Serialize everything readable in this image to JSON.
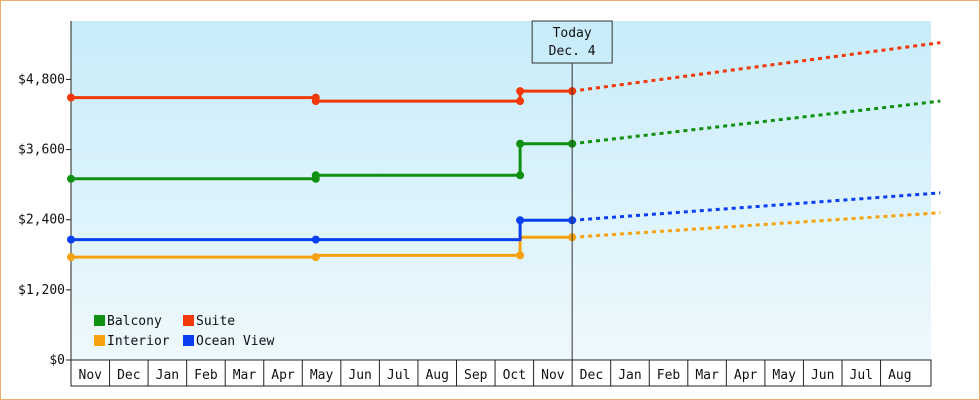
{
  "chart_data": {
    "type": "line",
    "title": "",
    "xlabel": "",
    "ylabel": "",
    "ylim": [
      0,
      5800
    ],
    "y_ticks": [
      {
        "value": 0,
        "label": "$0"
      },
      {
        "value": 1200,
        "label": "$1,200"
      },
      {
        "value": 2400,
        "label": "$2,400"
      },
      {
        "value": 3600,
        "label": "$3,600"
      },
      {
        "value": 4800,
        "label": "$4,800"
      }
    ],
    "x_categories": [
      "Nov",
      "Dec",
      "Jan",
      "Feb",
      "Mar",
      "Apr",
      "May",
      "Jun",
      "Jul",
      "Aug",
      "Sep",
      "Oct",
      "Nov",
      "Dec",
      "Jan",
      "Feb",
      "Mar",
      "Apr",
      "May",
      "Jun",
      "Jul",
      "Aug"
    ],
    "today_marker": {
      "line1": "Today",
      "line2": "Dec. 4",
      "x": 13.0
    },
    "grid": false,
    "background": {
      "top": "#c8ecfa",
      "bottom": "#eef9fd"
    },
    "legend_placement": "bottom-left",
    "series": [
      {
        "name": "Balcony",
        "color": "#109010",
        "points": [
          [
            0.0,
            3100
          ],
          [
            6.35,
            3100
          ],
          [
            6.35,
            3160
          ],
          [
            11.65,
            3160
          ],
          [
            11.65,
            3700
          ],
          [
            13.0,
            3700
          ]
        ],
        "markers": [
          [
            0.0,
            3100
          ],
          [
            6.35,
            3100
          ],
          [
            6.35,
            3160
          ],
          [
            11.65,
            3160
          ],
          [
            11.65,
            3700
          ],
          [
            13.0,
            3700
          ]
        ],
        "forecast": [
          [
            13.0,
            3700
          ],
          [
            22.55,
            4430
          ]
        ]
      },
      {
        "name": "Suite",
        "color": "#f03808",
        "points": [
          [
            0.0,
            4490
          ],
          [
            6.35,
            4490
          ],
          [
            6.35,
            4430
          ],
          [
            11.65,
            4430
          ],
          [
            11.65,
            4600
          ],
          [
            13.0,
            4600
          ]
        ],
        "markers": [
          [
            0.0,
            4490
          ],
          [
            6.35,
            4490
          ],
          [
            6.35,
            4430
          ],
          [
            11.65,
            4430
          ],
          [
            11.65,
            4600
          ],
          [
            13.0,
            4600
          ]
        ],
        "forecast": [
          [
            13.0,
            4600
          ],
          [
            22.55,
            5430
          ]
        ]
      },
      {
        "name": "Interior",
        "color": "#f6a10d",
        "points": [
          [
            0.0,
            1760
          ],
          [
            6.35,
            1760
          ],
          [
            6.35,
            1790
          ],
          [
            11.65,
            1790
          ],
          [
            11.65,
            2100
          ],
          [
            13.0,
            2100
          ]
        ],
        "markers": [
          [
            0.0,
            1760
          ],
          [
            6.35,
            1760
          ],
          [
            11.65,
            1790
          ],
          [
            13.0,
            2100
          ]
        ],
        "forecast": [
          [
            13.0,
            2100
          ],
          [
            22.55,
            2520
          ]
        ]
      },
      {
        "name": "Ocean View",
        "color": "#0a3ff0",
        "points": [
          [
            0.0,
            2060
          ],
          [
            11.65,
            2060
          ],
          [
            11.65,
            2390
          ],
          [
            13.0,
            2390
          ]
        ],
        "markers": [
          [
            0.0,
            2060
          ],
          [
            6.35,
            2060
          ],
          [
            11.65,
            2390
          ],
          [
            13.0,
            2390
          ]
        ],
        "forecast": [
          [
            13.0,
            2390
          ],
          [
            22.55,
            2860
          ]
        ]
      }
    ]
  }
}
